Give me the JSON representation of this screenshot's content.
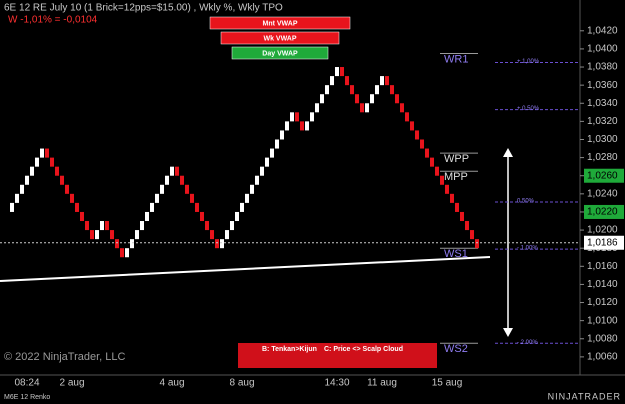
{
  "chart_data": {
    "type": "renko",
    "title": "6E 12 RE July 10 (1 Brick=12pps=$15.00) , Wkly %, Wkly TPO",
    "subtitle": "W -1,01% = -0,0104",
    "up_color": "#ffffff",
    "down_color": "#e8141c",
    "categories": [
      null,
      null,
      null,
      "08:24",
      null,
      null,
      null,
      null,
      null,
      null,
      null,
      null,
      "2 aug",
      null,
      null,
      null,
      null,
      null,
      null,
      null,
      null,
      null,
      null,
      null,
      null,
      null,
      null,
      null,
      null,
      null,
      null,
      null,
      "4 aug",
      null,
      null,
      null,
      null,
      null,
      null,
      null,
      null,
      null,
      null,
      null,
      null,
      null,
      "8 aug",
      null,
      null,
      null,
      null,
      null,
      null,
      null,
      null,
      null,
      null,
      null,
      null,
      null,
      null,
      null,
      null,
      null,
      null,
      "14:30",
      null,
      null,
      null,
      null,
      null,
      null,
      null,
      null,
      "11 aug",
      null,
      null,
      null,
      null,
      null,
      null,
      null,
      null,
      null,
      null,
      null,
      null,
      "15 aug",
      null,
      null,
      null,
      null,
      null,
      null
    ],
    "values": [
      1.023,
      1.024,
      1.025,
      1.026,
      1.027,
      1.028,
      1.029,
      1.028,
      1.027,
      1.026,
      1.025,
      1.024,
      1.023,
      1.022,
      1.021,
      1.02,
      1.019,
      1.02,
      1.021,
      1.02,
      1.019,
      1.018,
      1.017,
      1.018,
      1.019,
      1.02,
      1.021,
      1.022,
      1.023,
      1.024,
      1.025,
      1.026,
      1.027,
      1.026,
      1.025,
      1.024,
      1.023,
      1.022,
      1.021,
      1.02,
      1.019,
      1.018,
      1.019,
      1.02,
      1.021,
      1.022,
      1.023,
      1.024,
      1.025,
      1.026,
      1.027,
      1.028,
      1.029,
      1.03,
      1.031,
      1.032,
      1.033,
      1.032,
      1.031,
      1.032,
      1.033,
      1.034,
      1.035,
      1.036,
      1.037,
      1.038,
      1.037,
      1.036,
      1.035,
      1.034,
      1.033,
      1.034,
      1.035,
      1.036,
      1.037,
      1.036,
      1.035,
      1.034,
      1.033,
      1.032,
      1.031,
      1.03,
      1.029,
      1.028,
      1.027,
      1.026,
      1.025,
      1.024,
      1.023,
      1.022,
      1.021,
      1.02,
      1.019,
      1.018
    ],
    "ylim": [
      1.004,
      1.0454
    ],
    "yticks": [
      {
        "value": 1.042,
        "label": "1,0420"
      },
      {
        "value": 1.04,
        "label": "1,0400"
      },
      {
        "value": 1.038,
        "label": "1,0380"
      },
      {
        "value": 1.036,
        "label": "1,0360"
      },
      {
        "value": 1.034,
        "label": "1,0340"
      },
      {
        "value": 1.032,
        "label": "1,0320"
      },
      {
        "value": 1.03,
        "label": "1,0300"
      },
      {
        "value": 1.028,
        "label": "1,0280"
      },
      {
        "value": 1.026,
        "label": "1,0260"
      },
      {
        "value": 1.024,
        "label": "1,0240"
      },
      {
        "value": 1.022,
        "label": "1,0220"
      },
      {
        "value": 1.02,
        "label": "1,0200"
      },
      {
        "value": 1.018,
        "label": "1,0180"
      },
      {
        "value": 1.016,
        "label": "1,0160"
      },
      {
        "value": 1.014,
        "label": "1,0140"
      },
      {
        "value": 1.012,
        "label": "1,0120"
      },
      {
        "value": 1.01,
        "label": "1,0100"
      },
      {
        "value": 1.008,
        "label": "1,0080"
      },
      {
        "value": 1.006,
        "label": "1,0060"
      }
    ],
    "price_markers": [
      {
        "value": 1.026,
        "label": "1,0260",
        "color": "#1faa3a"
      },
      {
        "value": 1.022,
        "label": "1,0220",
        "color": "#1faa3a"
      },
      {
        "value": 1.0186,
        "label": "1,0186",
        "color": "#ffffff"
      }
    ],
    "levels": [
      {
        "name": "WR1",
        "value": 1.0395
      },
      {
        "name": "WPP",
        "value": 1.0285
      },
      {
        "name": "MPP",
        "value": 1.0265
      },
      {
        "name": "WS1",
        "value": 1.018
      },
      {
        "name": "WS2",
        "value": 1.0075
      }
    ],
    "percent_levels": [
      {
        "name": "+ 1,00%",
        "value": 1.0385
      },
      {
        "name": "+ 0.50%",
        "value": 1.0333
      },
      {
        "name": "0.50%",
        "value": 1.0231
      },
      {
        "name": "- 1.00%",
        "value": 1.0179
      },
      {
        "name": "- 2.00%",
        "value": 1.0075
      }
    ],
    "buttons": [
      {
        "label": "Mnt VWAP",
        "color": "#e8141c"
      },
      {
        "label": "Wk VWAP",
        "color": "#e8141c"
      },
      {
        "label": "Day VWAP",
        "color": "#1faa3a"
      }
    ],
    "signals": [
      "B: Tenkan>Kijun",
      "C: Price <> Scalp Cloud"
    ],
    "copyright": "© 2022 NinjaTrader, LLC",
    "instrument": "M6E 12 Renko",
    "logo": "NINJATRADER"
  }
}
